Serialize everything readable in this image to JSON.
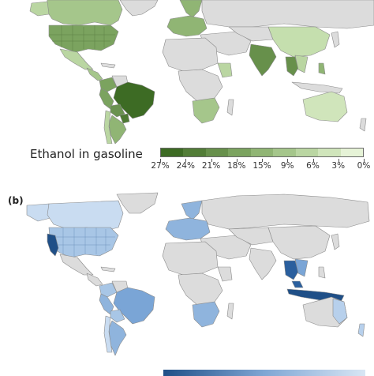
{
  "panel_a": {
    "legend_title": "Ethanol in gasoline",
    "legend_ticks": [
      "27%",
      "24%",
      "21%",
      "18%",
      "15%",
      "9%",
      "6%",
      "3%",
      "0%"
    ],
    "scale_colors": [
      "#3d6b24",
      "#527d37",
      "#67904b",
      "#7ba35f",
      "#90b574",
      "#a5c68b",
      "#bad6a2",
      "#d0e5bb",
      "#e6f3d7"
    ],
    "regions": [
      {
        "name": "Brazil",
        "color": "#3d6b24"
      },
      {
        "name": "Paraguay",
        "color": "#4e7a33"
      },
      {
        "name": "Peru",
        "color": "#7ba35f"
      },
      {
        "name": "Bolivia",
        "color": "#6a9250"
      },
      {
        "name": "Colombia",
        "color": "#7ba35f"
      },
      {
        "name": "Argentina",
        "color": "#90b574"
      },
      {
        "name": "USA",
        "color": "#7ba35f"
      },
      {
        "name": "Canada",
        "color": "#a5c68b"
      },
      {
        "name": "Mexico",
        "color": "#bad6a2"
      },
      {
        "name": "Central America",
        "color": "#a5c68b"
      },
      {
        "name": "Europe",
        "color": "#90b574"
      },
      {
        "name": "India",
        "color": "#67904b"
      },
      {
        "name": "China",
        "color": "#c5dfae"
      },
      {
        "name": "Thailand",
        "color": "#67904b"
      },
      {
        "name": "Philippines",
        "color": "#90b574"
      },
      {
        "name": "Australia",
        "color": "#d0e5bb"
      },
      {
        "name": "Southern Africa",
        "color": "#a5c68b"
      },
      {
        "name": "Ethiopia",
        "color": "#bad6a2"
      }
    ]
  },
  "panel_b": {
    "label": "(b)",
    "scale_colors": [
      "#1f4f87",
      "#d8e6f4"
    ],
    "regions": [
      {
        "name": "California",
        "color": "#1f4f87"
      },
      {
        "name": "USA",
        "color": "#a8c6e6"
      },
      {
        "name": "Canada",
        "color": "#c9dcf1"
      },
      {
        "name": "Brazil",
        "color": "#7aa5d6"
      },
      {
        "name": "Argentina",
        "color": "#8fb4dd"
      },
      {
        "name": "Europe",
        "color": "#8fb4dd"
      },
      {
        "name": "Indonesia",
        "color": "#1f4f87"
      },
      {
        "name": "Thailand",
        "color": "#2a5f9e"
      },
      {
        "name": "Malaysia",
        "color": "#2a5f9e"
      },
      {
        "name": "Australia",
        "color": "#b7d0ec"
      },
      {
        "name": "South Africa",
        "color": "#8fb4dd"
      }
    ]
  },
  "base_land_color": "#dcdcdc",
  "border_color": "#8a8a8a"
}
